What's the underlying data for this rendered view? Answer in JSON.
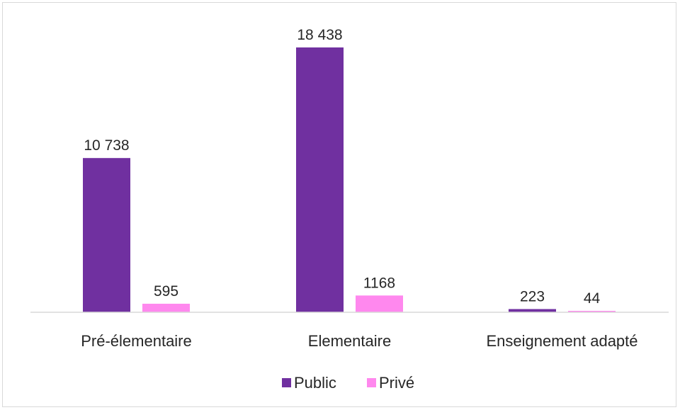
{
  "chart_data": {
    "type": "bar",
    "categories": [
      "Pré-élementaire",
      "Elementaire",
      "Enseignement adapté"
    ],
    "series": [
      {
        "name": "Public",
        "color": "#7030a0",
        "values": [
          10738,
          18438,
          223
        ],
        "labels": [
          "10 738",
          "18 438",
          "223"
        ]
      },
      {
        "name": "Privé",
        "color": "#ff88ee",
        "values": [
          595,
          1168,
          44
        ],
        "labels": [
          "595",
          "1168",
          "44"
        ]
      }
    ],
    "ylim": [
      0,
      18438
    ],
    "grid": false,
    "legend": "bottom"
  }
}
